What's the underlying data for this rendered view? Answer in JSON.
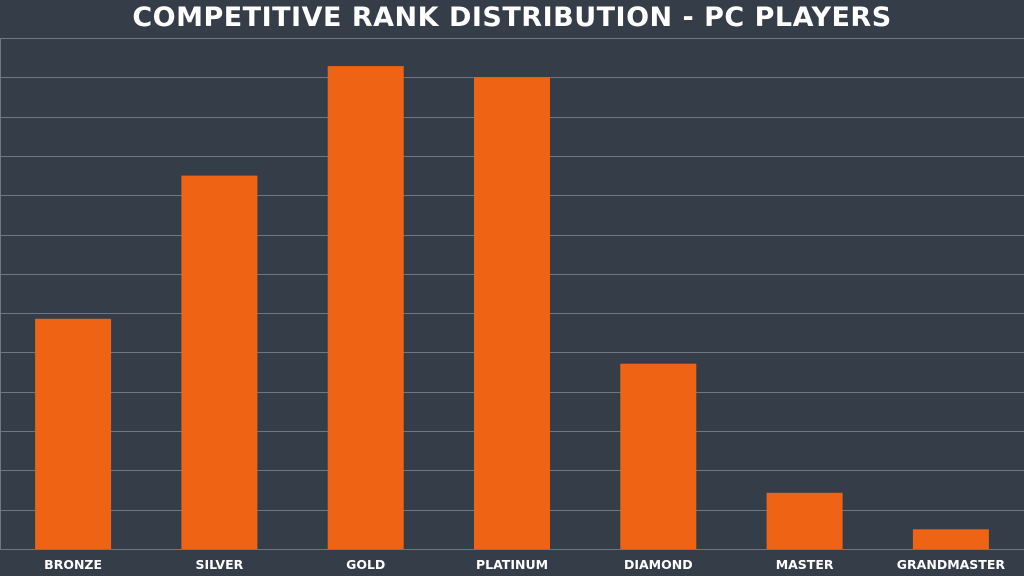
{
  "colors": {
    "background": "#353d48",
    "bar": "#ee6314",
    "grid": "#6f7782",
    "text": "#ffffff"
  },
  "chart_data": {
    "type": "bar",
    "title": "COMPETITIVE RANK DISTRIBUTION - PC PLAYERS",
    "xlabel": "",
    "ylabel": "",
    "categories": [
      "BRONZE",
      "SILVER",
      "GOLD",
      "PLATINUM",
      "DIAMOND",
      "MASTER",
      "GRANDMASTER"
    ],
    "values": [
      8.2,
      13.3,
      17.2,
      16.8,
      6.6,
      2.0,
      0.7
    ],
    "ylim": [
      0,
      18.2
    ],
    "grid": true,
    "grid_step": 1.4,
    "y_tick_labels_visible": false,
    "legend": "none"
  }
}
